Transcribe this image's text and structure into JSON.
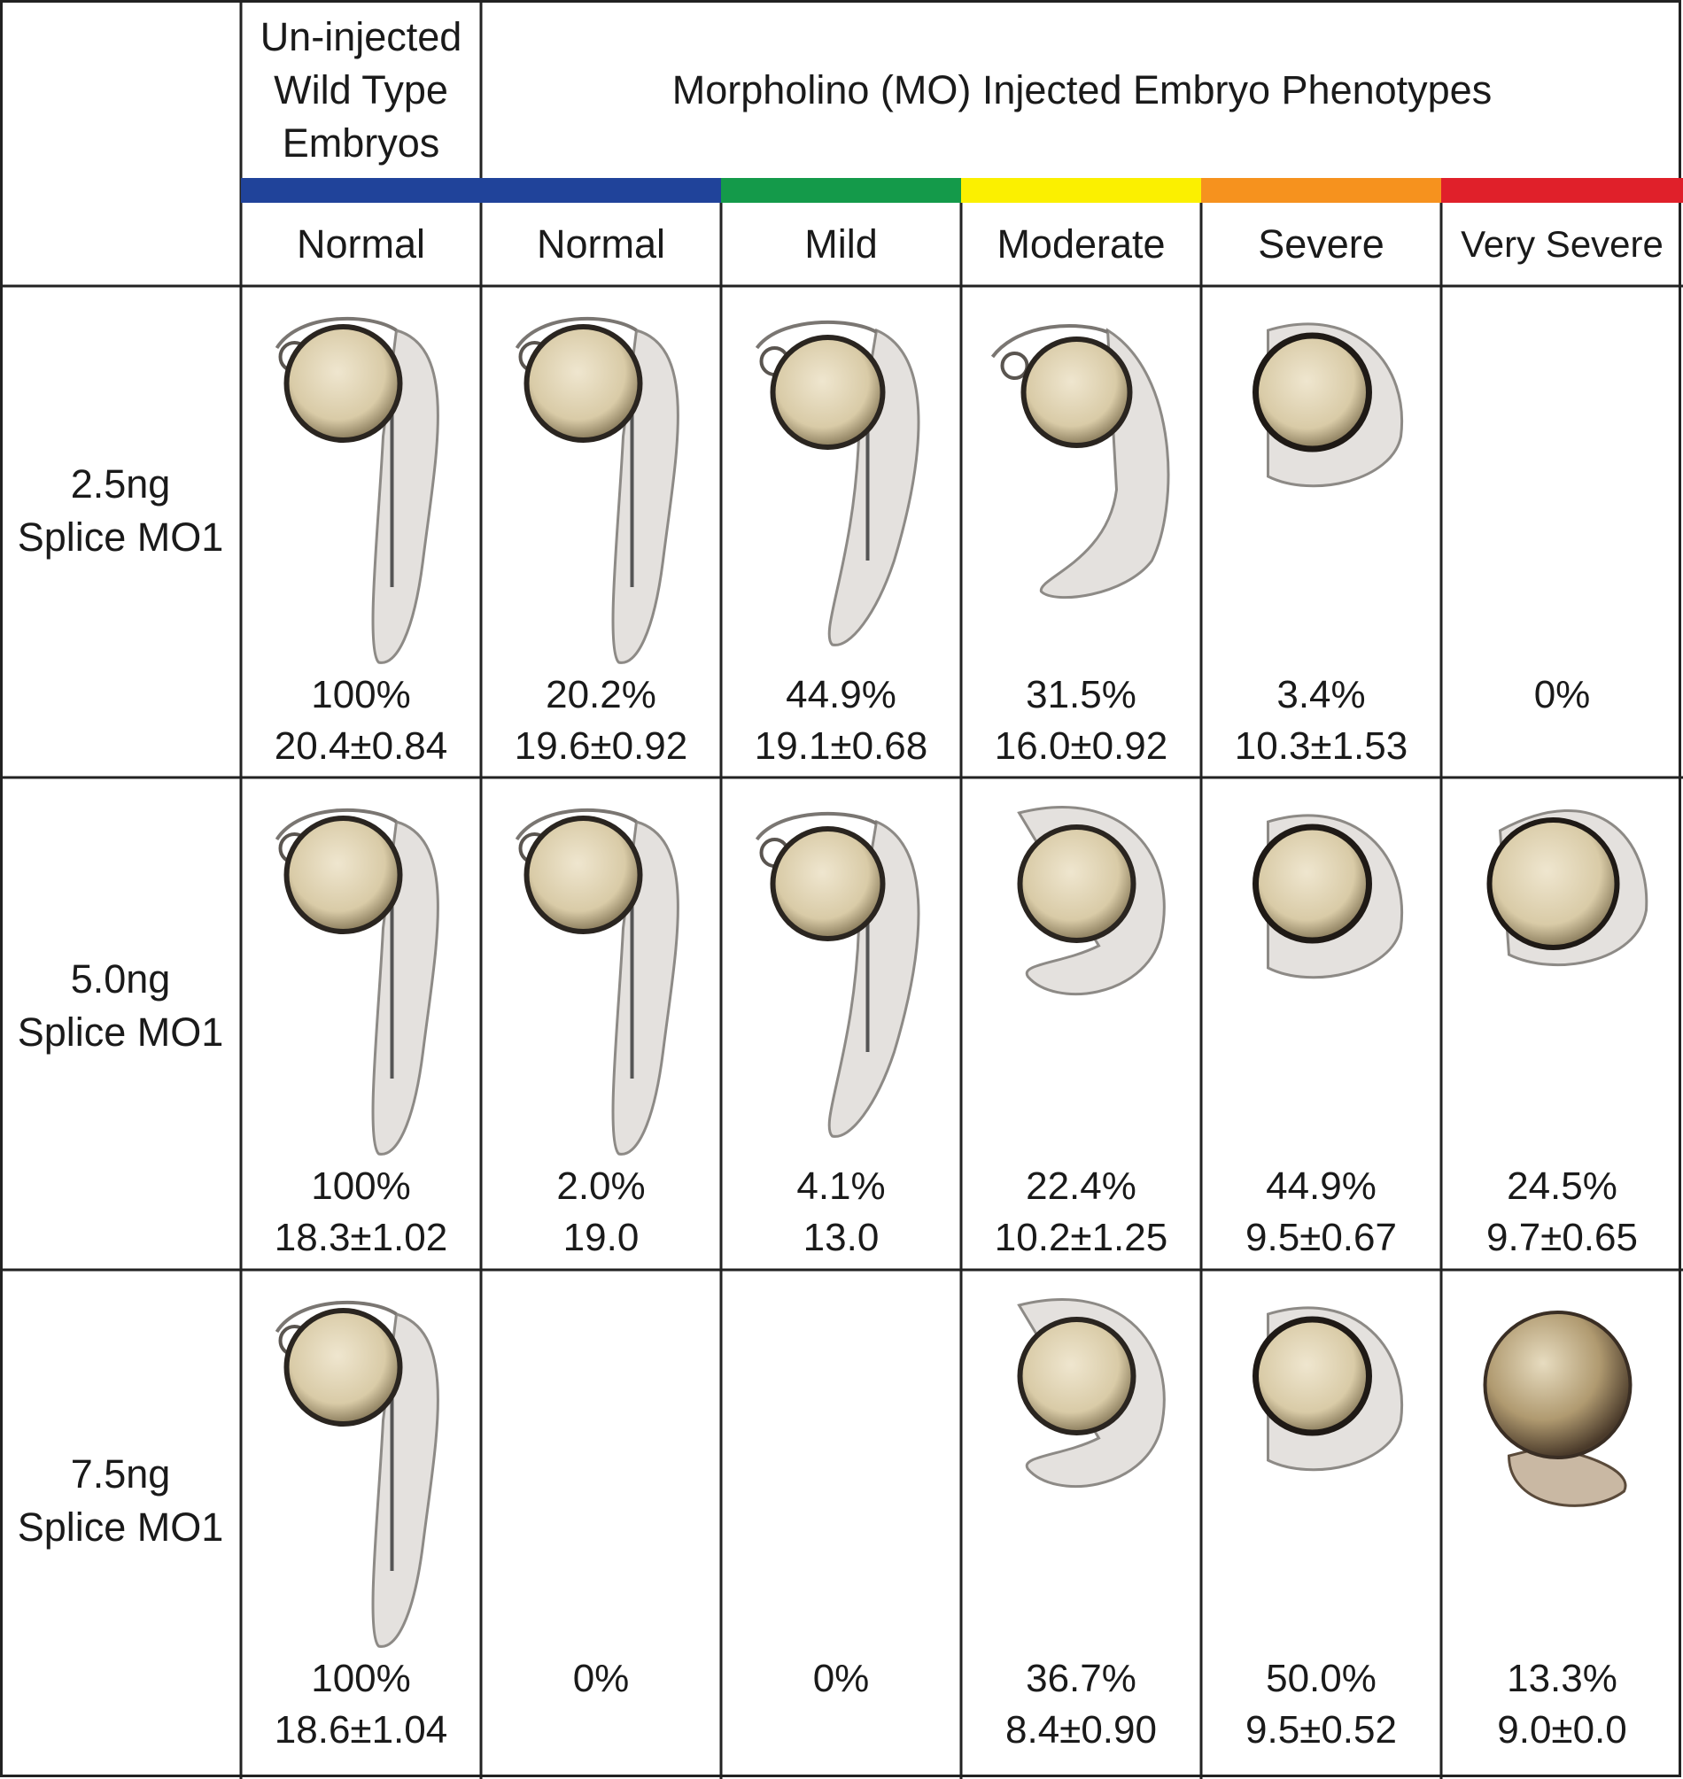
{
  "header": {
    "wt_title_lines": [
      "Un-injected",
      "Wild Type",
      "Embryos"
    ],
    "mo_title": "Morpholino (MO) Injected Embryo Phenotypes"
  },
  "columns": [
    {
      "label": "Normal",
      "color": "#20439a"
    },
    {
      "label": "Normal",
      "color": "#20439a"
    },
    {
      "label": "Mild",
      "color": "#149a4a"
    },
    {
      "label": "Moderate",
      "color": "#fbf000"
    },
    {
      "label": "Severe",
      "color": "#f6921e"
    },
    {
      "label": "Very Severe",
      "color": "#e0202a"
    }
  ],
  "rows": [
    {
      "label_lines": [
        "2.5ng",
        "Splice MO1"
      ],
      "cells": [
        {
          "pct": "100%",
          "val": "20.4±0.84",
          "embryo": "normal-long"
        },
        {
          "pct": "20.2%",
          "val": "19.6±0.92",
          "embryo": "normal-long"
        },
        {
          "pct": "44.9%",
          "val": "19.1±0.68",
          "embryo": "mild"
        },
        {
          "pct": "31.5%",
          "val": "16.0±0.92",
          "embryo": "moderate-curved"
        },
        {
          "pct": "3.4%",
          "val": "10.3±1.53",
          "embryo": "severe-curled"
        },
        {
          "pct": "0%",
          "val": "",
          "embryo": ""
        }
      ]
    },
    {
      "label_lines": [
        "5.0ng",
        "Splice MO1"
      ],
      "cells": [
        {
          "pct": "100%",
          "val": "18.3±1.02",
          "embryo": "normal-long"
        },
        {
          "pct": "2.0%",
          "val": "19.0",
          "embryo": "normal-long"
        },
        {
          "pct": "4.1%",
          "val": "13.0",
          "embryo": "mild"
        },
        {
          "pct": "22.4%",
          "val": "10.2±1.25",
          "embryo": "moderate-curled"
        },
        {
          "pct": "44.9%",
          "val": "9.5±0.67",
          "embryo": "severe-curled"
        },
        {
          "pct": "24.5%",
          "val": "9.7±0.65",
          "embryo": "very-severe"
        }
      ]
    },
    {
      "label_lines": [
        "7.5ng",
        "Splice MO1"
      ],
      "cells": [
        {
          "pct": "100%",
          "val": "18.6±1.04",
          "embryo": "normal-long"
        },
        {
          "pct": "0%",
          "val": "",
          "embryo": ""
        },
        {
          "pct": "0%",
          "val": "",
          "embryo": ""
        },
        {
          "pct": "36.7%",
          "val": "8.4±0.90",
          "embryo": "moderate-curled"
        },
        {
          "pct": "50.0%",
          "val": "9.5±0.52",
          "embryo": "severe-curled"
        },
        {
          "pct": "13.3%",
          "val": "9.0±0.0",
          "embryo": "very-severe-dark"
        }
      ]
    }
  ]
}
